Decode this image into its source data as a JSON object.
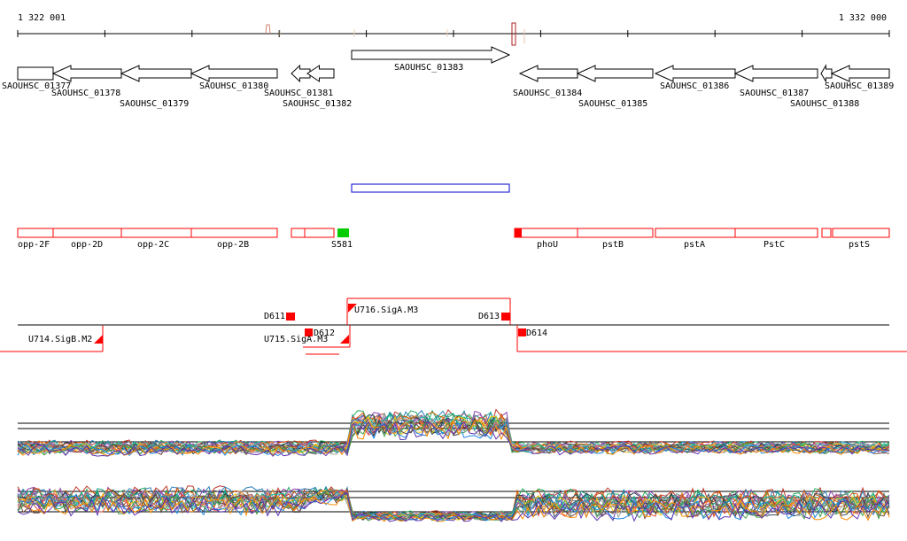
{
  "ruler": {
    "start_label": "1 322 001",
    "end_label": "1 332 000"
  },
  "genes": [
    {
      "label": "SAOUHSC_01377",
      "strand": "+"
    },
    {
      "label": "SAOUHSC_01378",
      "strand": "-"
    },
    {
      "label": "SAOUHSC_01379",
      "strand": "-"
    },
    {
      "label": "SAOUHSC_01380",
      "strand": "-"
    },
    {
      "label": "SAOUHSC_01381",
      "strand": "-"
    },
    {
      "label": "SAOUHSC_01382",
      "strand": "-"
    },
    {
      "label": "SAOUHSC_01383",
      "strand": "+"
    },
    {
      "label": "SAOUHSC_01384",
      "strand": "-"
    },
    {
      "label": "SAOUHSC_01385",
      "strand": "-"
    },
    {
      "label": "SAOUHSC_01386",
      "strand": "-"
    },
    {
      "label": "SAOUHSC_01387",
      "strand": "-"
    },
    {
      "label": "SAOUHSC_01388",
      "strand": "-"
    },
    {
      "label": "SAOUHSC_01389",
      "strand": "-"
    }
  ],
  "annotations": [
    {
      "label": "opp-2F"
    },
    {
      "label": "opp-2D"
    },
    {
      "label": "opp-2C"
    },
    {
      "label": "opp-2B"
    },
    {
      "label": ""
    },
    {
      "label": ""
    },
    {
      "label": "S581"
    },
    {
      "label": "phoU"
    },
    {
      "label": "pstB"
    },
    {
      "label": "pstA"
    },
    {
      "label": "PstC"
    },
    {
      "label": ""
    },
    {
      "label": "pstS"
    }
  ],
  "segments": [
    {
      "label": "U714.SigB.M2"
    },
    {
      "label": "D611"
    },
    {
      "label": "D612"
    },
    {
      "label": "U715.SigA.M3"
    },
    {
      "label": "U716.SigA.M3"
    },
    {
      "label": "D613"
    },
    {
      "label": "D614"
    }
  ],
  "colors": {
    "axis": "#000000",
    "gene": "#000000",
    "annotation": "#ff0000",
    "annotation_highlight": "#00cc00",
    "selection": "#0000cc",
    "segment": "#ff0000"
  }
}
